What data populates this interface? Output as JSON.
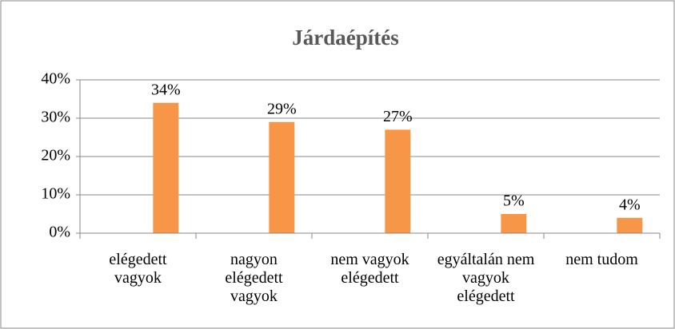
{
  "chart_data": {
    "type": "bar",
    "title": "Járdaépítés",
    "categories": [
      "elégedett vagyok",
      "nagyon elégedett vagyok",
      "nem vagyok elégedett",
      "egyáltalán nem vagyok elégedett",
      "nem tudom"
    ],
    "values": [
      34,
      29,
      27,
      5,
      4
    ],
    "value_labels": [
      "34%",
      "29%",
      "27%",
      "5%",
      "4%"
    ],
    "color": "#f79646",
    "ylim": [
      0,
      40
    ],
    "yticks": [
      {
        "value": 0,
        "label": "0%"
      },
      {
        "value": 10,
        "label": "10%"
      },
      {
        "value": 20,
        "label": "20%"
      },
      {
        "value": 30,
        "label": "30%"
      },
      {
        "value": 40,
        "label": "40%"
      }
    ],
    "grid": true
  }
}
